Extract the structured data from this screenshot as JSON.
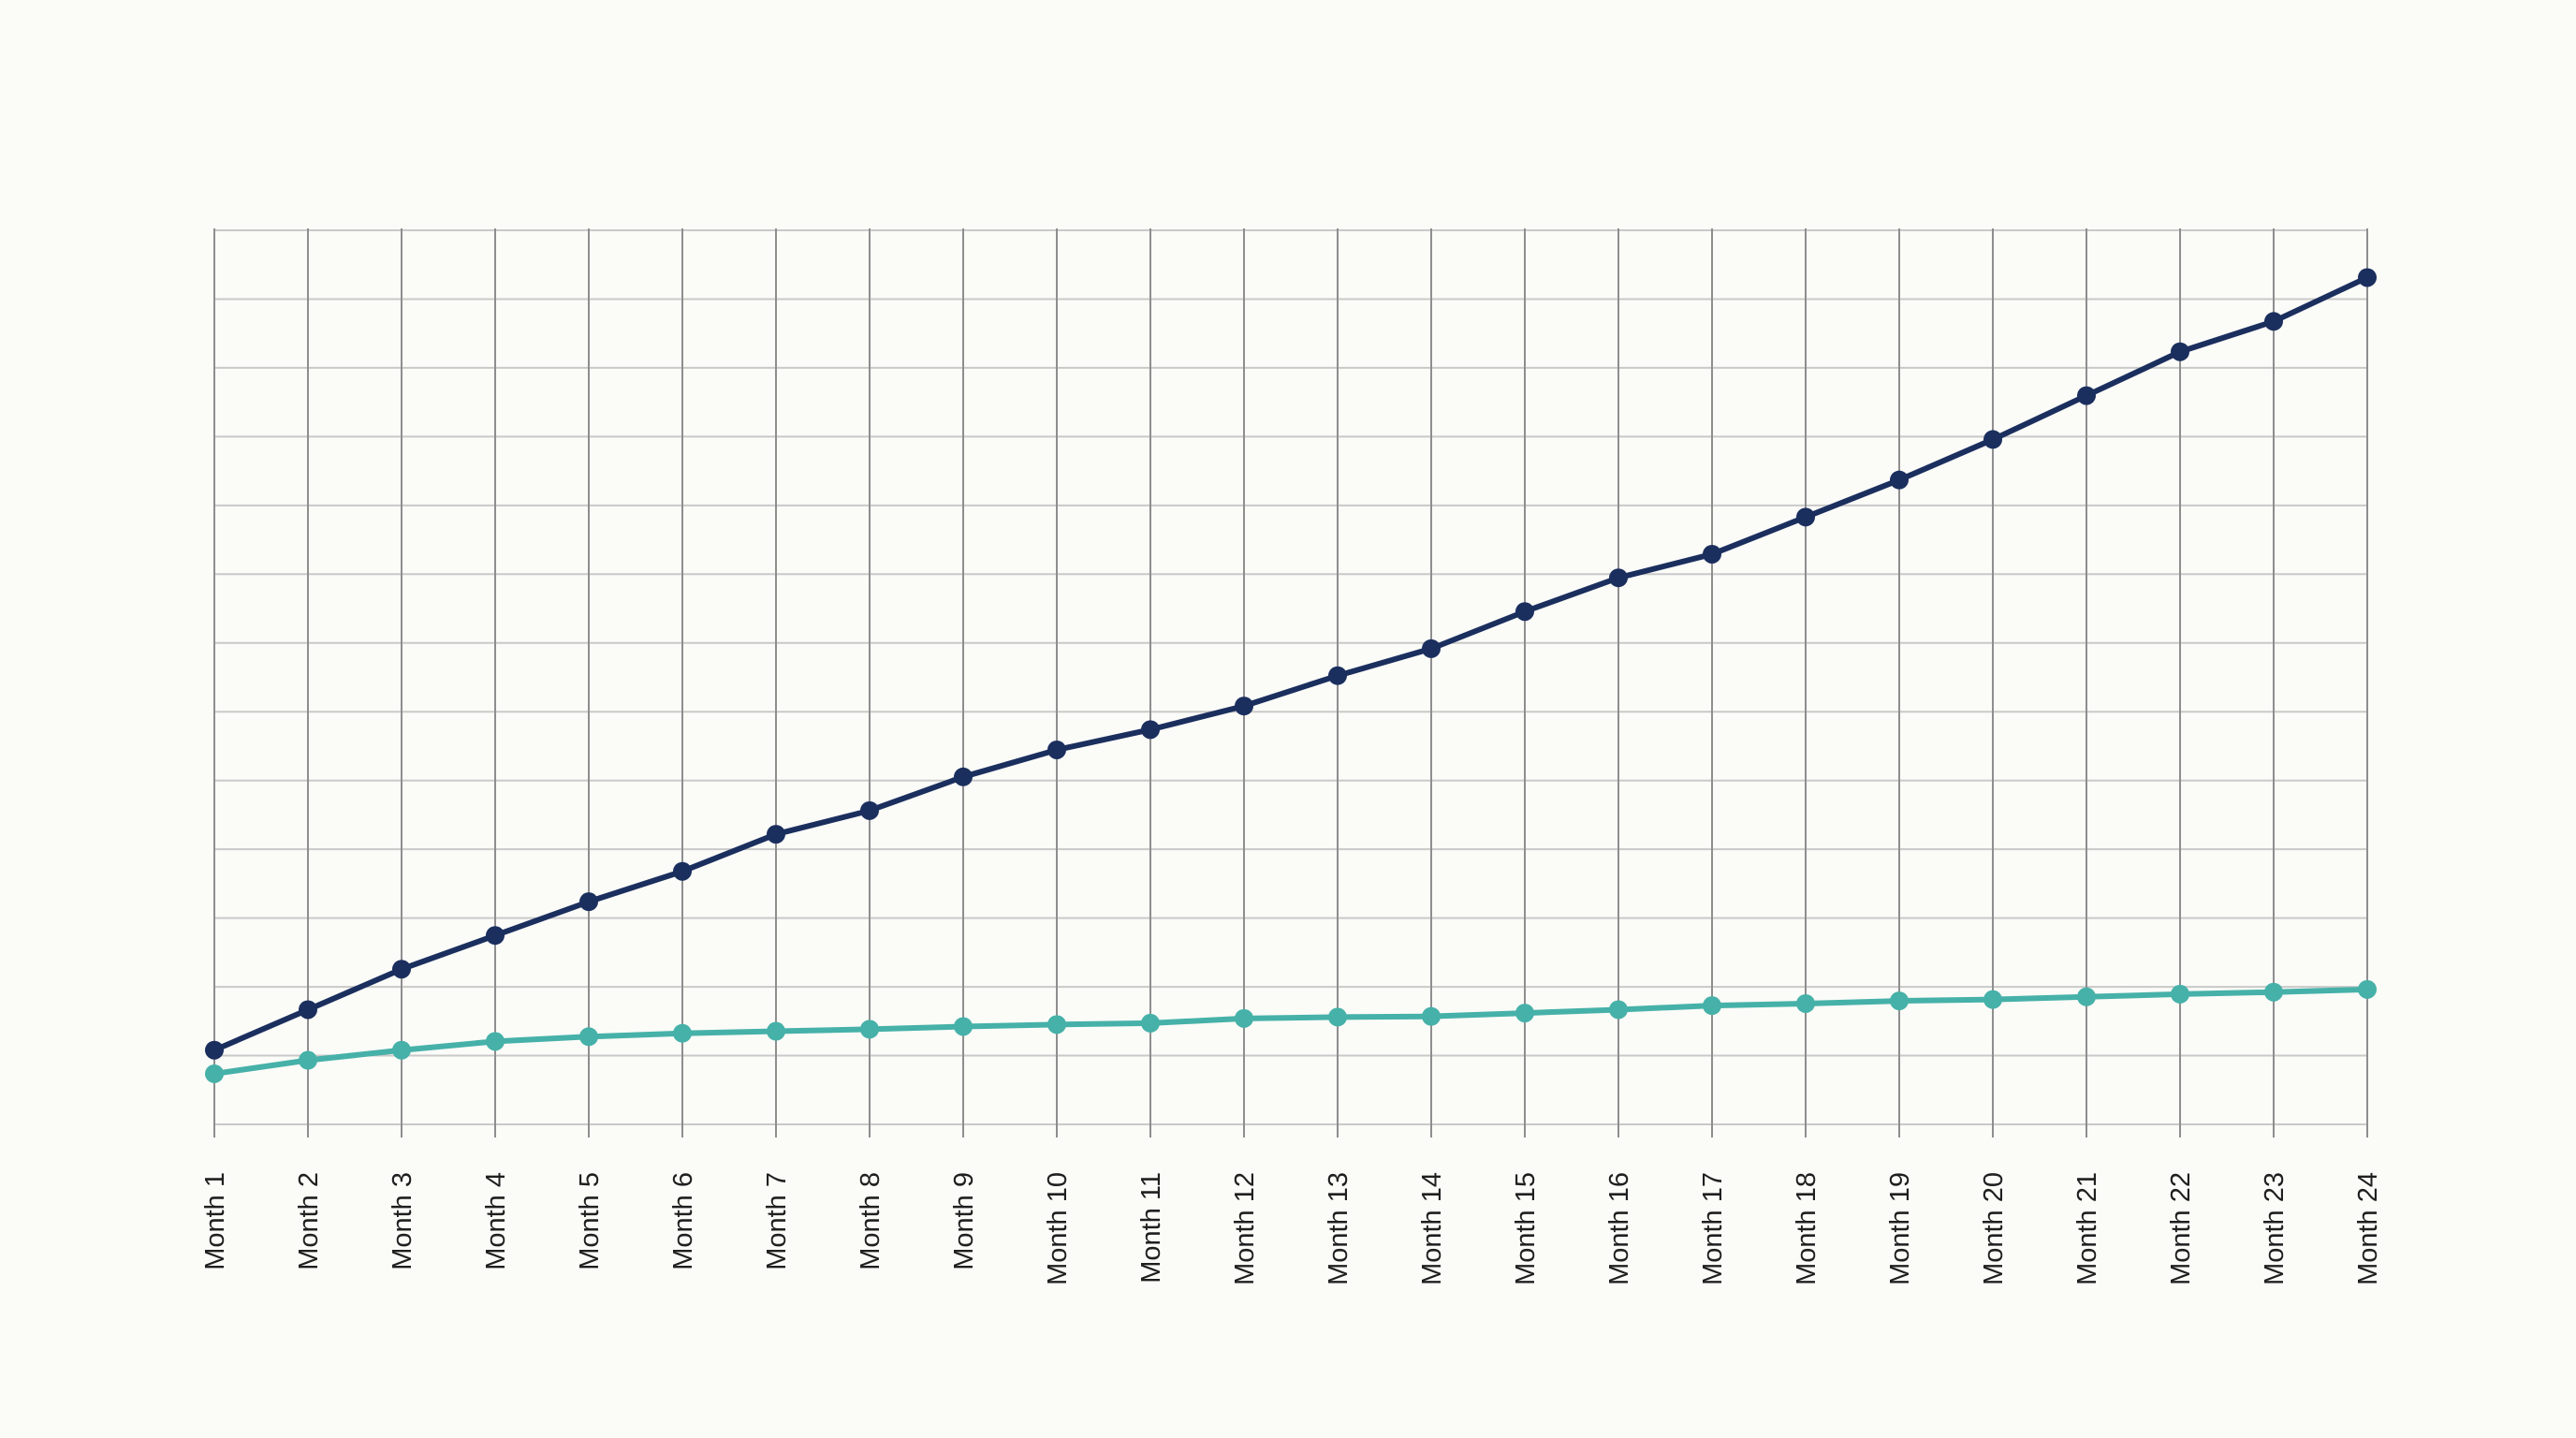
{
  "chart_data": {
    "type": "line",
    "categories": [
      "Month 1",
      "Month 2",
      "Month 3",
      "Month 4",
      "Month 5",
      "Month 6",
      "Month 7",
      "Month 8",
      "Month 9",
      "Month 10",
      "Month 11",
      "Month 12",
      "Month 13",
      "Month 14",
      "Month 15",
      "Month 16",
      "Month 17",
      "Month 18",
      "Month 19",
      "Month 20",
      "Month 21",
      "Month 22",
      "Month 23",
      "Month 24"
    ],
    "series": [
      {
        "color": "#1b2f5e",
        "values": [
          1.1,
          1.7,
          2.3,
          2.8,
          3.3,
          3.75,
          4.3,
          4.65,
          5.15,
          5.55,
          5.85,
          6.2,
          6.65,
          7.05,
          7.6,
          8.1,
          8.45,
          9.0,
          9.55,
          10.15,
          10.8,
          11.45,
          11.9,
          12.55
        ]
      },
      {
        "color": "#46b1a8",
        "values": [
          0.75,
          0.95,
          1.1,
          1.23,
          1.3,
          1.35,
          1.38,
          1.41,
          1.45,
          1.48,
          1.5,
          1.57,
          1.59,
          1.6,
          1.65,
          1.7,
          1.76,
          1.79,
          1.83,
          1.85,
          1.89,
          1.93,
          1.96,
          2.0
        ]
      }
    ],
    "ylim": [
      0,
      13.25
    ],
    "grid": true,
    "legend": "none",
    "title": "",
    "xlabel": "",
    "ylabel": ""
  }
}
